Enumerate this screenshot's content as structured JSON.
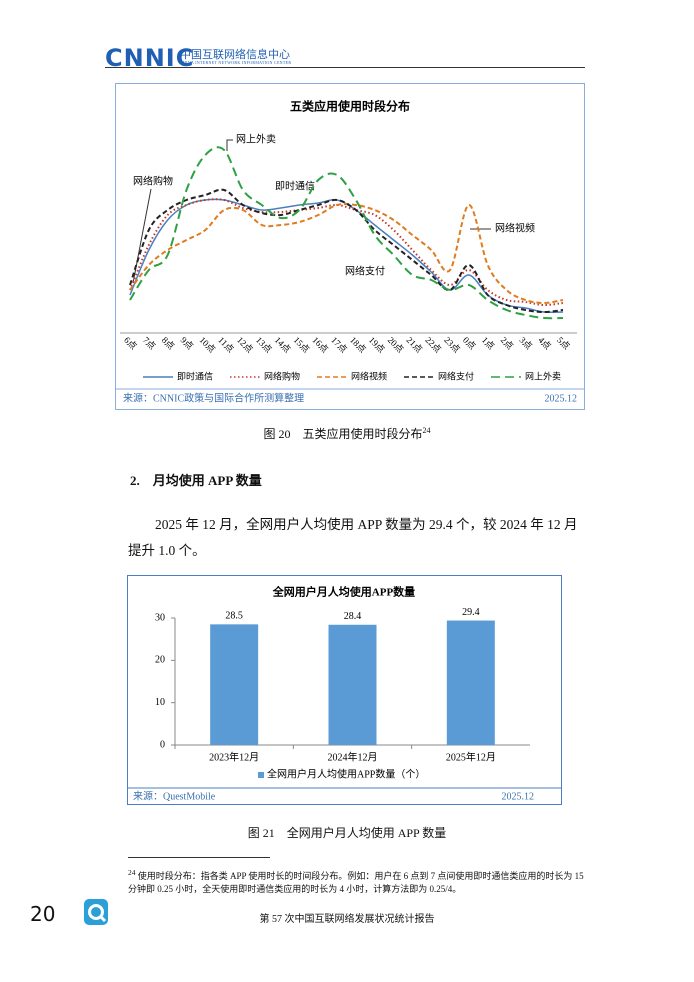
{
  "header": {
    "logo": "CNNIC",
    "name_cn": "中国互联网络信息中心",
    "name_en": "CHINA INTERNET NETWORK INFORMATION CENTER"
  },
  "chart_data": [
    {
      "type": "line",
      "title": "五类应用使用时段分布",
      "categories": [
        "6点",
        "7点",
        "8点",
        "9点",
        "10点",
        "11点",
        "12点",
        "13点",
        "14点",
        "15点",
        "16点",
        "17点",
        "18点",
        "19点",
        "20点",
        "21点",
        "22点",
        "23点",
        "0点",
        "1点",
        "2点",
        "3点",
        "4点",
        "5点"
      ],
      "series": [
        {
          "name": "即时通信",
          "color": "#4a7fc1",
          "dash": "solid",
          "values": [
            35,
            80,
            110,
            125,
            130,
            130,
            125,
            120,
            122,
            125,
            127,
            130,
            120,
            105,
            90,
            75,
            58,
            40,
            55,
            35,
            25,
            22,
            18,
            18
          ]
        },
        {
          "name": "网络购物",
          "color": "#c0392b",
          "dash": "dotted",
          "values": [
            40,
            85,
            115,
            125,
            130,
            130,
            122,
            118,
            118,
            120,
            122,
            125,
            120,
            115,
            100,
            80,
            60,
            45,
            60,
            40,
            30,
            28,
            25,
            27
          ]
        },
        {
          "name": "网络视频",
          "color": "#e07b1f",
          "dash": "dashed",
          "values": [
            40,
            65,
            80,
            90,
            100,
            120,
            120,
            105,
            105,
            108,
            115,
            125,
            125,
            120,
            110,
            95,
            80,
            60,
            125,
            65,
            40,
            30,
            27,
            30
          ]
        },
        {
          "name": "网络支付",
          "color": "#222222",
          "dash": "dashed",
          "values": [
            45,
            100,
            120,
            130,
            135,
            140,
            125,
            117,
            115,
            120,
            125,
            130,
            120,
            100,
            85,
            70,
            55,
            40,
            65,
            35,
            25,
            20,
            18,
            20
          ]
        },
        {
          "name": "网上外卖",
          "color": "#2ea043",
          "dash": "longdash",
          "values": [
            30,
            60,
            75,
            140,
            175,
            180,
            140,
            125,
            112,
            120,
            150,
            155,
            130,
            95,
            75,
            55,
            50,
            40,
            45,
            30,
            20,
            15,
            12,
            12
          ]
        }
      ],
      "annotations": [
        "网上外卖",
        "网络购物",
        "即时通信",
        "网络视频",
        "网络支付"
      ],
      "source": "来源：CNNIC政策与国际合作所测算整理",
      "date": "2025.12",
      "caption": "图 20　五类应用使用时段分布",
      "caption_note": "24"
    },
    {
      "type": "bar",
      "title": "全网用户月人均使用APP数量",
      "categories": [
        "2023年12月",
        "2024年12月",
        "2025年12月"
      ],
      "series": [
        {
          "name": "全网用户月人均使用APP数量（个）",
          "color": "#5b9bd5",
          "values": [
            28.5,
            28.4,
            29.4
          ]
        }
      ],
      "ylim": [
        0,
        30
      ],
      "yticks": [
        0,
        10,
        20,
        30
      ],
      "source": "来源：QuestMobile",
      "date": "2025.12",
      "caption": "图 21　全网用户月人均使用 APP 数量"
    }
  ],
  "section": {
    "heading": "2.　月均使用 APP 数量",
    "paragraph": "2025 年 12 月，全网用户人均使用 APP 数量为 29.4 个，较 2024 年 12 月提升 1.0 个。"
  },
  "footnote": {
    "number": "24",
    "text": "使用时段分布：指各类 APP 使用时长的时间段分布。例如：用户在 6 点到 7 点间使用即时通信类应用的时长为 15 分钟即 0.25 小时，全天使用即时通信类应用的时长为 4 小时，计算方法即为 0.25/4。"
  },
  "footer": {
    "page_number": "20",
    "report": "第 57 次中国互联网络发展状况统计报告"
  }
}
